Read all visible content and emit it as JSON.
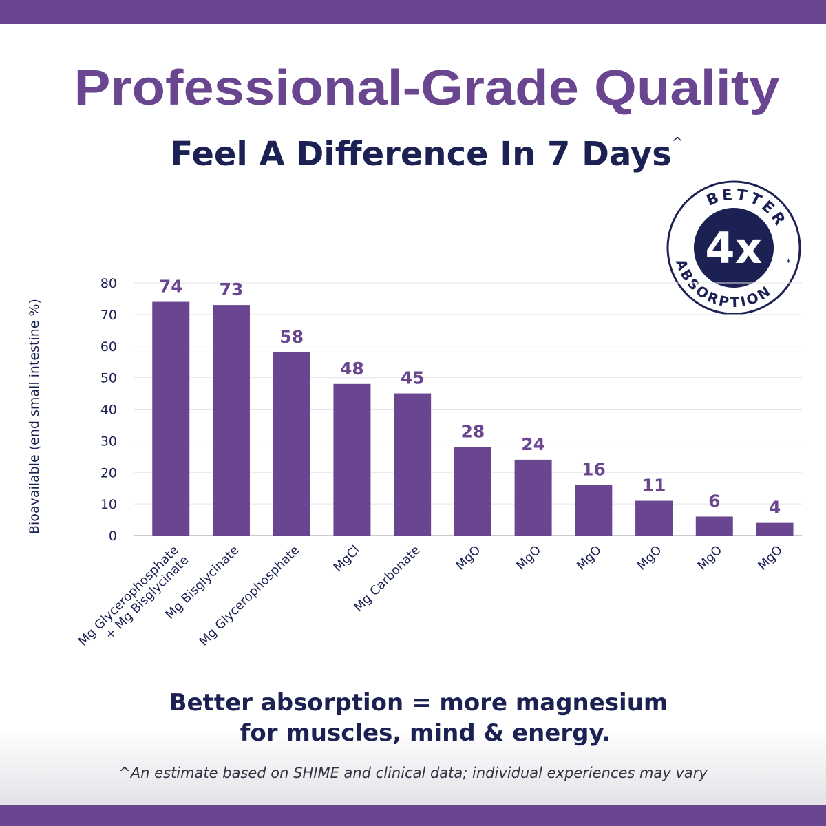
{
  "chart_data": {
    "type": "bar",
    "title": "Professional-Grade Quality",
    "subtitle": "Feel A Difference In 7 Days",
    "subtitle_mark": "^",
    "ylabel": "Bioavailable (end small intestine %)",
    "categories": [
      "Mg Glycerophosphate\n+ Mg Bisglycinate",
      "Mg Bisglycinate",
      "Mg Glycerophosphate",
      "MgCl",
      "Mg Carbonate",
      "MgO",
      "MgO",
      "MgO",
      "MgO",
      "MgO",
      "MgO"
    ],
    "values": [
      74,
      73,
      58,
      48,
      45,
      28,
      24,
      16,
      11,
      6,
      4
    ],
    "color": "#6a4690",
    "ylim": [
      0,
      80
    ],
    "yticks": [
      0,
      10,
      20,
      30,
      40,
      50,
      60,
      70,
      80
    ],
    "grid": true
  },
  "badge": {
    "top": "BETTER",
    "center": "4x",
    "bottom": "ABSORPTION",
    "mark": "*"
  },
  "tagline": [
    "Better absorption = more magnesium",
    "for muscles, mind & energy."
  ],
  "footnote": "^An estimate based on SHIME and clinical data; individual experiences may vary"
}
